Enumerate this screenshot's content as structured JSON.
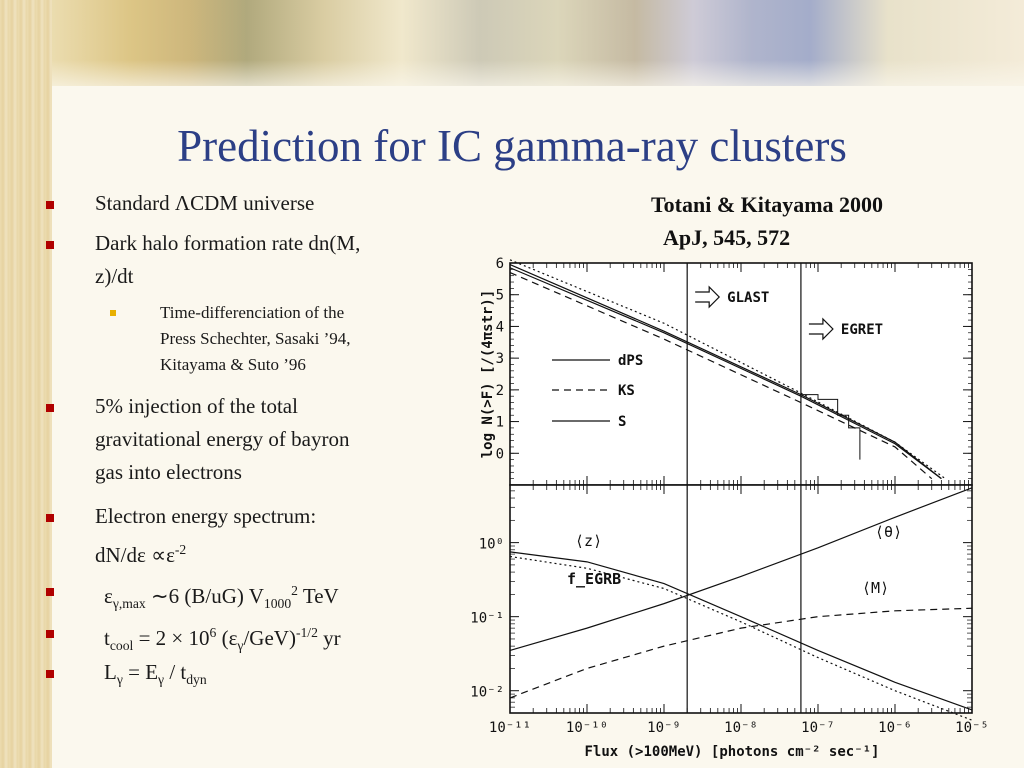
{
  "slide": {
    "title": "Prediction for IC gamma-ray clusters",
    "reference_line1": "Totani & Kitayama 2000",
    "reference_line2": "ApJ, 545, 572",
    "bullets": [
      "Standard ΛCDM universe",
      "Dark halo formation rate dn(M,",
      "z)/dt",
      "5% injection of the total",
      "gravitational energy of bayron",
      "gas into electrons",
      "Electron energy spectrum:"
    ],
    "subbullets": [
      "Time-differenciation of the",
      "Press Schechter, Sasaki ’94,",
      "Kitayama & Suto ’96"
    ],
    "formula_spectrum": {
      "main": "dN/dε ∝ε",
      "sup": "-2"
    },
    "formula_emax": {
      "eps": "ε",
      "sub": "γ,max",
      "rest": " ∼6 (B/uG) V",
      "sub2": "1000",
      "sup": "2",
      "tail": " TeV"
    },
    "formula_tcool": {
      "t": "t",
      "sub": "cool",
      "mid": " = 2 × 10",
      "sup1": "6",
      "mid2": " (ε",
      "sub2": "γ",
      "mid3": "/GeV)",
      "sup2": "-1/2",
      "tail": " yr"
    },
    "formula_lum": {
      "l": "L",
      "sub1": "γ",
      "mid": " = E",
      "sub2": "γ",
      "mid2": " / t",
      "sub3": "dyn"
    }
  },
  "chart_data": [
    {
      "type": "line",
      "xscale": "log",
      "xlim": [
        1e-11,
        1e-05
      ],
      "ylim": [
        -1,
        6
      ],
      "ylabel": "log N(>F) [/(4πstr)]",
      "ytick_labels": [
        "0",
        "1",
        "2",
        "3",
        "4",
        "5",
        "6"
      ],
      "annotations": [
        "GLAST",
        "EGRET"
      ],
      "vlines": [
        2e-09,
        6e-08
      ],
      "legend_position": "left",
      "series": [
        {
          "name": "dPS",
          "style": "solid",
          "x": [
            1e-11,
            1e-09,
            6e-08,
            1e-06,
            4e-06
          ],
          "y": [
            5.85,
            3.8,
            1.8,
            0.3,
            -0.8
          ]
        },
        {
          "name": "KS",
          "style": "dashed",
          "x": [
            1e-11,
            1e-09,
            6e-08,
            1e-06,
            3e-06
          ],
          "y": [
            5.7,
            3.6,
            1.6,
            0.2,
            -0.8
          ]
        },
        {
          "name": "S",
          "style": "solid",
          "x": [
            1e-11,
            1e-09,
            6e-08,
            1e-06,
            4e-06
          ],
          "y": [
            5.95,
            3.85,
            1.85,
            0.35,
            -0.8
          ]
        },
        {
          "name": "",
          "style": "dotted",
          "x": [
            1e-11,
            1e-09,
            6e-08,
            1e-06,
            4.5e-06
          ],
          "y": [
            6.1,
            4.1,
            1.9,
            0.35,
            -0.8
          ]
        }
      ]
    },
    {
      "type": "line",
      "xscale": "log",
      "yscale": "log",
      "xlim": [
        1e-11,
        1e-05
      ],
      "ylim": [
        0.005,
        6
      ],
      "xlabel": "Flux (>100MeV) [photons cm⁻² sec⁻¹]",
      "xtick_labels": [
        "10⁻¹¹",
        "10⁻¹⁰",
        "10⁻⁹",
        "10⁻⁸",
        "10⁻⁷",
        "10⁻⁶",
        "10⁻⁵"
      ],
      "ytick_labels": [
        "10⁰",
        "10⁻¹",
        "10⁻²"
      ],
      "curve_labels": [
        "⟨z⟩",
        "f_EGRB",
        "⟨θ⟩",
        "⟨M⟩"
      ],
      "vlines": [
        2e-09,
        6e-08
      ],
      "series": [
        {
          "name": "⟨z⟩",
          "style": "solid",
          "x": [
            1e-11,
            1e-10,
            1e-09,
            1e-08,
            1e-07,
            1e-06,
            1e-05
          ],
          "y": [
            0.75,
            0.55,
            0.28,
            0.1,
            0.035,
            0.013,
            0.0055
          ]
        },
        {
          "name": "f_EGRB",
          "style": "dotted",
          "x": [
            1e-11,
            1e-10,
            1e-09,
            1e-08,
            1e-07,
            1e-06,
            1e-05
          ],
          "y": [
            0.65,
            0.45,
            0.24,
            0.085,
            0.028,
            0.01,
            0.004
          ]
        },
        {
          "name": "⟨θ⟩",
          "style": "solid",
          "x": [
            1e-11,
            1e-10,
            1e-09,
            1e-08,
            1e-07,
            1e-06,
            1e-05
          ],
          "y": [
            0.035,
            0.07,
            0.15,
            0.35,
            0.85,
            2.2,
            5.5
          ]
        },
        {
          "name": "⟨M⟩",
          "style": "dashed",
          "x": [
            1e-11,
            1e-10,
            1e-09,
            1e-08,
            1e-07,
            1e-06,
            1e-05
          ],
          "y": [
            0.008,
            0.02,
            0.04,
            0.07,
            0.1,
            0.12,
            0.13
          ]
        }
      ]
    }
  ]
}
